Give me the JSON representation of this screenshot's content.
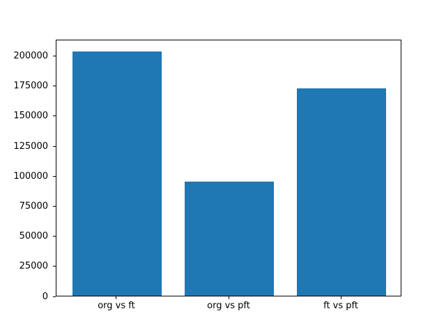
{
  "chart_data": {
    "type": "bar",
    "categories": [
      "org vs ft",
      "org vs pft",
      "ft vs pft"
    ],
    "values": [
      203500,
      95000,
      172300
    ],
    "title": "",
    "xlabel": "",
    "ylabel": "",
    "ylim": [
      0,
      213675
    ],
    "yticks": [
      0,
      25000,
      50000,
      75000,
      100000,
      125000,
      150000,
      175000,
      200000
    ],
    "bar_color": "#1f77b4",
    "frame_color": "#000000",
    "background_color": "#ffffff",
    "grid": false,
    "legend": null
  }
}
